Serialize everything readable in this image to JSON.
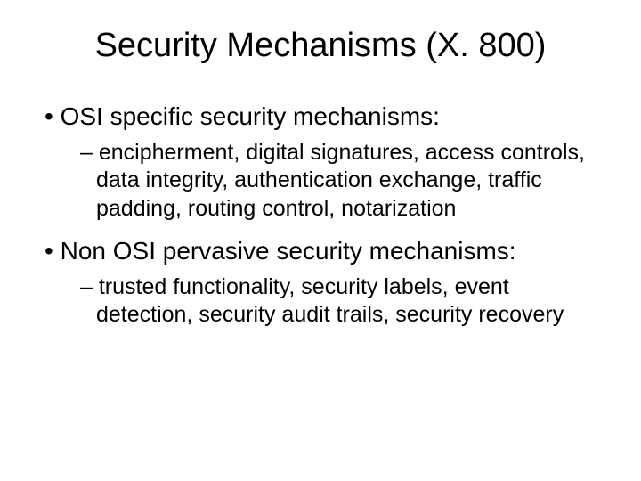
{
  "slide": {
    "title": "Security Mechanisms (X. 800)",
    "bullets": [
      {
        "level": 1,
        "text": "OSI specific security mechanisms:"
      },
      {
        "level": 2,
        "text": "encipherment, digital signatures, access controls, data integrity, authentication exchange, traffic padding, routing control, notarization"
      },
      {
        "level": 1,
        "text": "Non OSI pervasive security mechanisms:"
      },
      {
        "level": 2,
        "text": "trusted functionality, security labels, event detection, security audit trails, security recovery"
      }
    ]
  },
  "style": {
    "background_color": "#ffffff",
    "text_color": "#000000",
    "title_fontsize": 38,
    "body_l1_fontsize": 28,
    "body_l2_fontsize": 25,
    "font_family": "Arial"
  }
}
